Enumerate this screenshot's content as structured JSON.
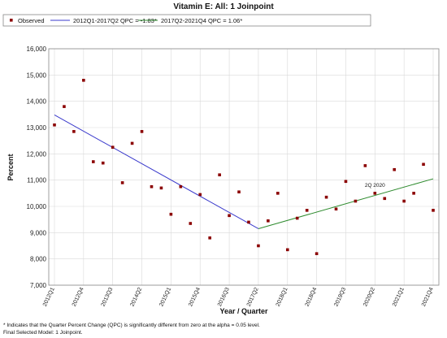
{
  "chart_data": {
    "type": "scatter",
    "title": "Vitamin E: All: 1 Joinpoint",
    "xlabel": "Year / Quarter",
    "ylabel": "Percent",
    "ylim": [
      7000,
      16000
    ],
    "yticks": [
      "7,000",
      "8,000",
      "9,000",
      "10,000",
      "11,000",
      "12,000",
      "13,000",
      "14,000",
      "15,000",
      "16,000"
    ],
    "grid": true,
    "legend_position": "top",
    "categories": [
      "2012Q1",
      "2012Q2",
      "2012Q3",
      "2012Q4",
      "2013Q1",
      "2013Q2",
      "2013Q3",
      "2013Q4",
      "2014Q1",
      "2014Q2",
      "2014Q3",
      "2014Q4",
      "2015Q1",
      "2015Q2",
      "2015Q3",
      "2015Q4",
      "2016Q1",
      "2016Q2",
      "2016Q3",
      "2016Q4",
      "2017Q1",
      "2017Q2",
      "2017Q3",
      "2017Q4",
      "2018Q1",
      "2018Q2",
      "2018Q3",
      "2018Q4",
      "2019Q1",
      "2019Q2",
      "2019Q3",
      "2019Q4",
      "2020Q1",
      "2020Q2",
      "2020Q3",
      "2020Q4",
      "2021Q1",
      "2021Q2",
      "2021Q3",
      "2021Q4"
    ],
    "tick_labels": [
      "2012Q1",
      "2012Q4",
      "2013Q3",
      "2014Q2",
      "2015Q1",
      "2015Q4",
      "2016Q3",
      "2017Q2",
      "2018Q1",
      "2018Q4",
      "2019Q3",
      "2020Q2",
      "2021Q1",
      "2021Q4"
    ],
    "observed": {
      "name": "Observed",
      "color": "#8b0000",
      "values": [
        13100,
        13800,
        12850,
        14800,
        11700,
        11650,
        12250,
        10900,
        12400,
        12850,
        10750,
        10700,
        9700,
        10750,
        9350,
        10450,
        8800,
        11200,
        9650,
        10550,
        9400,
        8500,
        9450,
        10500,
        8350,
        9550,
        9850,
        8200,
        10350,
        9900,
        10950,
        10200,
        11550,
        10500,
        10300,
        11400,
        10200,
        10500,
        11600,
        9850
      ]
    },
    "segments": [
      {
        "name": "2012Q1-2017Q2 QPC = -1.83*",
        "color": "#3b3bcc",
        "start": "2012Q1",
        "end": "2017Q2",
        "y_start": 13480,
        "y_end": 9150
      },
      {
        "name": "2017Q2-2021Q4 QPC = 1.06*",
        "color": "#2e8b2e",
        "start": "2017Q2",
        "end": "2021Q4",
        "y_start": 9150,
        "y_end": 11050
      }
    ],
    "annotations": [
      {
        "text": "2Q 2020",
        "at": "2020Q2",
        "y": 10620
      }
    ],
    "footnotes": [
      "* Indicates that the Quarter Percent Change (QPC) is significantly different from zero at the alpha = 0.05 level.",
      "Final Selected Model: 1 Joinpoint."
    ]
  },
  "colors": {
    "grid": "#d9d9d9",
    "frame": "#888888",
    "legend_border": "#888888"
  }
}
